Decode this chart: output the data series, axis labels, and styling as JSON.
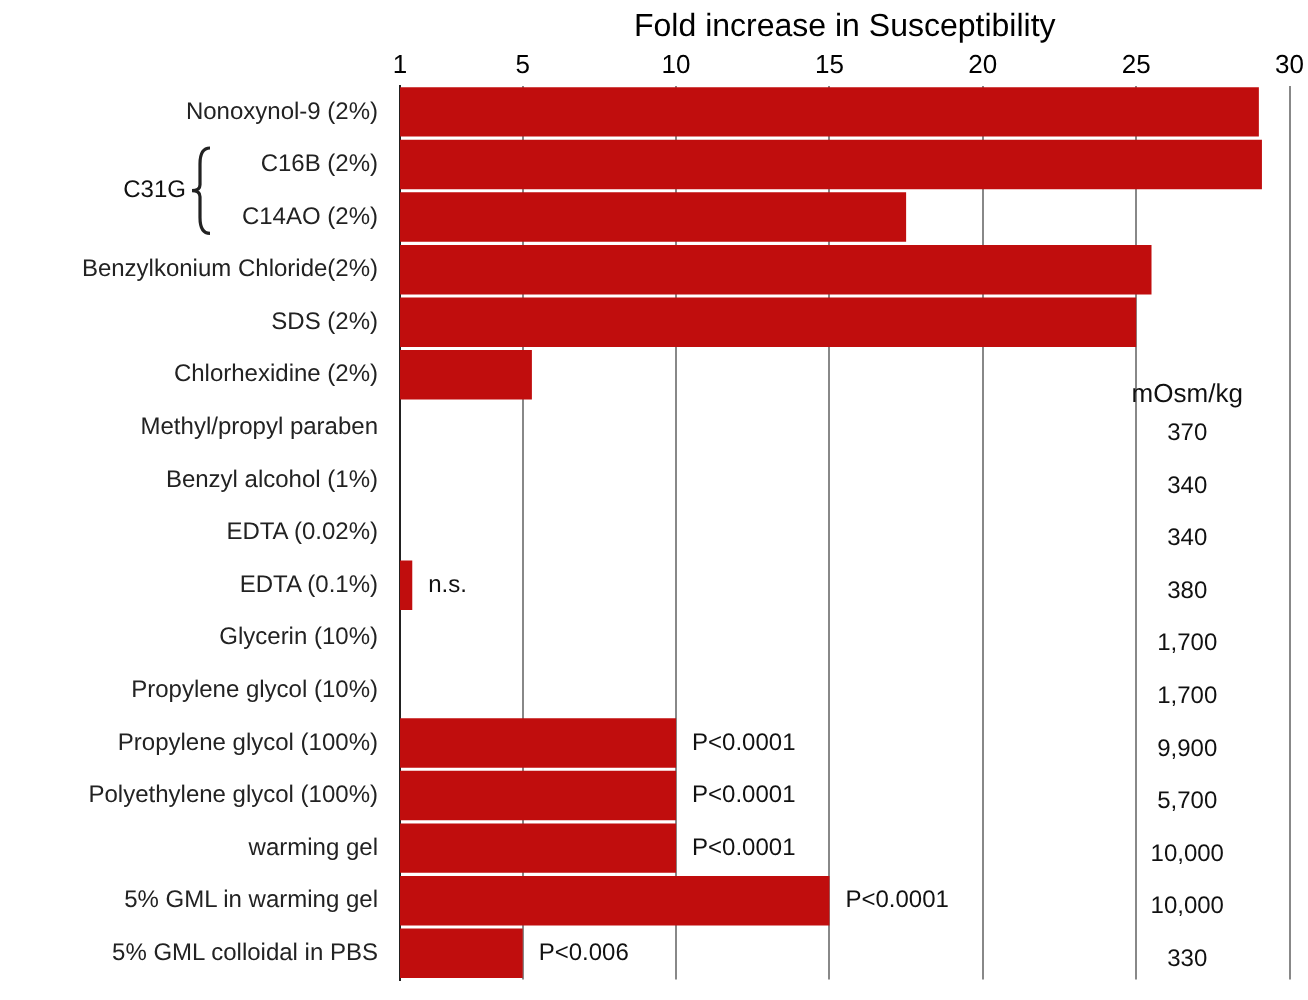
{
  "chart_data": {
    "type": "bar",
    "orientation": "horizontal",
    "xlabel": "Fold increase in Susceptibility",
    "categories": [
      "Nonoxynol-9 (2%)",
      "C16B (2%)",
      "C14AO (2%)",
      "Benzylkonium Chloride(2%)",
      "SDS (2%)",
      "Chlorhexidine (2%)",
      "Methyl/propyl paraben",
      "Benzyl alcohol (1%)",
      "EDTA (0.02%)",
      "EDTA (0.1%)",
      "Glycerin (10%)",
      "Propylene glycol (10%)",
      "Propylene glycol (100%)",
      "Polyethylene glycol (100%)",
      "warming gel",
      "5% GML in warming gel",
      "5% GML colloidal in PBS"
    ],
    "values": [
      29.0,
      29.1,
      17.5,
      25.5,
      25.0,
      5.3,
      null,
      null,
      null,
      1.4,
      null,
      null,
      10,
      10,
      10,
      15,
      5
    ],
    "color": "#c00d0d",
    "xlim": [
      1,
      30
    ],
    "xticks": [
      1,
      5,
      10,
      15,
      20,
      25,
      30
    ],
    "grid": "x",
    "annotations": [
      "C31G",
      "mOsm/kg",
      "370",
      "340",
      "340",
      "380",
      "1,700",
      "1,700",
      "9,900",
      "5,700",
      "10,000",
      "10,000",
      "330",
      {
        "text": "n.s.",
        "x": 1.4,
        "y": "EDTA (0.1%)"
      },
      {
        "text": "P<0.0001",
        "x": 10,
        "y": "Propylene glycol (100%)"
      },
      {
        "text": "P<0.0001",
        "x": 10,
        "y": "Polyethylene glycol (100%)"
      },
      {
        "text": "P<0.0001",
        "x": 10,
        "y": "warming gel"
      },
      {
        "text": "P<0.0001",
        "x": 15,
        "y": "5% GML in warming gel"
      },
      {
        "text": "P<0.006",
        "x": 5,
        "y": "5% GML colloidal in PBS"
      }
    ]
  }
}
